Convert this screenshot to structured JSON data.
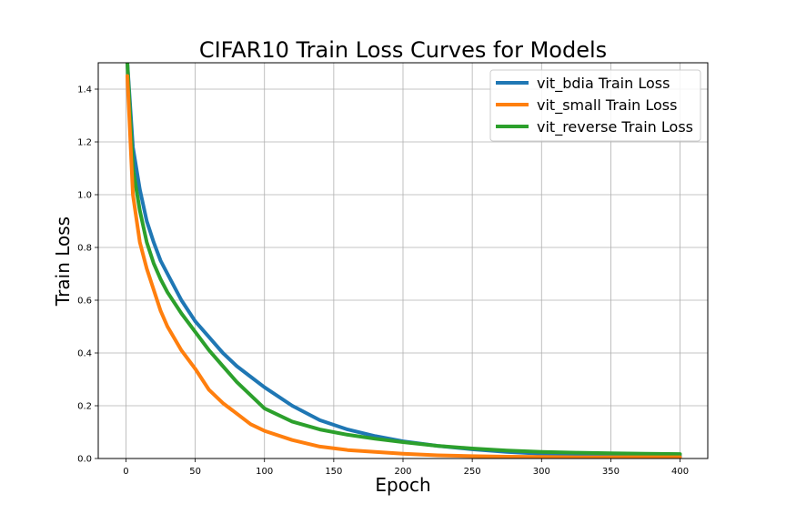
{
  "chart_data": {
    "type": "line",
    "title": "CIFAR10 Train Loss Curves for Models",
    "xlabel": "Epoch",
    "ylabel": "Train Loss",
    "xlim": [
      -20,
      420
    ],
    "ylim": [
      0,
      1.5
    ],
    "xticks": [
      0,
      50,
      100,
      150,
      200,
      250,
      300,
      350,
      400
    ],
    "yticks": [
      0.0,
      0.2,
      0.4,
      0.6,
      0.8,
      1.0,
      1.2,
      1.4
    ],
    "grid": true,
    "legend_position": "top-right",
    "series": [
      {
        "name": "vit_bdia Train Loss",
        "color": "#1f77b4",
        "x": [
          1,
          5,
          10,
          15,
          20,
          25,
          30,
          40,
          50,
          60,
          70,
          80,
          90,
          100,
          120,
          140,
          160,
          180,
          200,
          225,
          250,
          275,
          300,
          325,
          350,
          375,
          400
        ],
        "y": [
          1.5,
          1.18,
          1.02,
          0.9,
          0.82,
          0.75,
          0.7,
          0.6,
          0.52,
          0.46,
          0.4,
          0.35,
          0.31,
          0.27,
          0.2,
          0.145,
          0.11,
          0.085,
          0.065,
          0.048,
          0.035,
          0.025,
          0.018,
          0.014,
          0.012,
          0.01,
          0.009
        ]
      },
      {
        "name": "vit_small Train Loss",
        "color": "#ff7f0e",
        "x": [
          1,
          5,
          10,
          15,
          20,
          25,
          30,
          40,
          50,
          60,
          70,
          80,
          90,
          100,
          120,
          140,
          160,
          180,
          200,
          225,
          250,
          275,
          300,
          325,
          350,
          375,
          400
        ],
        "y": [
          1.45,
          1.0,
          0.82,
          0.72,
          0.64,
          0.56,
          0.5,
          0.41,
          0.34,
          0.26,
          0.21,
          0.17,
          0.13,
          0.105,
          0.07,
          0.045,
          0.032,
          0.025,
          0.018,
          0.012,
          0.009,
          0.007,
          0.006,
          0.005,
          0.005,
          0.005,
          0.005
        ]
      },
      {
        "name": "vit_reverse Train Loss",
        "color": "#2ca02c",
        "x": [
          1,
          5,
          10,
          15,
          20,
          25,
          30,
          40,
          50,
          60,
          70,
          80,
          90,
          100,
          120,
          140,
          160,
          180,
          200,
          225,
          250,
          275,
          300,
          325,
          350,
          375,
          400
        ],
        "y": [
          1.5,
          1.1,
          0.94,
          0.82,
          0.74,
          0.68,
          0.63,
          0.55,
          0.48,
          0.41,
          0.35,
          0.29,
          0.24,
          0.19,
          0.14,
          0.11,
          0.09,
          0.075,
          0.062,
          0.048,
          0.038,
          0.03,
          0.025,
          0.022,
          0.02,
          0.018,
          0.017
        ]
      }
    ]
  }
}
